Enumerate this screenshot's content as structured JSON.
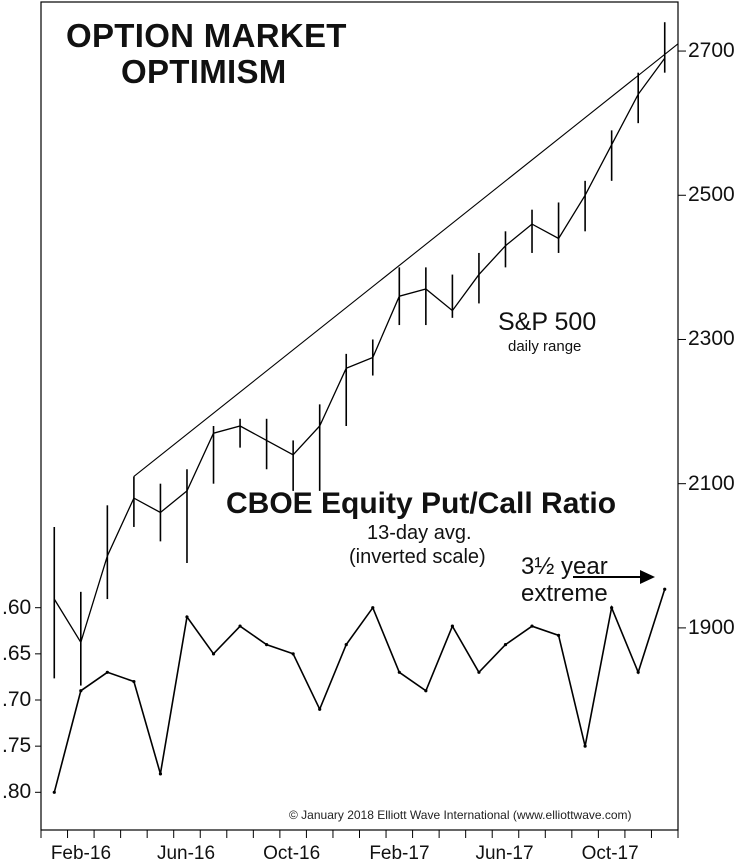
{
  "copyright": "© January 2018 Elliott Wave International (www.elliottwave.com)",
  "colors": {
    "line": "#000000",
    "background": "#ffffff"
  },
  "chart_data": {
    "type": "line",
    "title_lines": [
      "OPTION MARKET",
      "OPTIMISM"
    ],
    "x": {
      "tick_labels": [
        "Feb-16",
        "Jun-16",
        "Oct-16",
        "Feb-17",
        "Jun-17",
        "Oct-17"
      ],
      "range": [
        "2016-01",
        "2018-01"
      ]
    },
    "panels": [
      {
        "name": "S&P 500",
        "subtitle": "daily range",
        "axis": "right",
        "ylim": [
          1800,
          2750
        ],
        "yticks": [
          1900,
          2100,
          2300,
          2500,
          2700
        ],
        "x": [
          "2016-01",
          "2016-02",
          "2016-03",
          "2016-04",
          "2016-05",
          "2016-06",
          "2016-07",
          "2016-08",
          "2016-09",
          "2016-10",
          "2016-11",
          "2016-12",
          "2017-01",
          "2017-02",
          "2017-03",
          "2017-04",
          "2017-05",
          "2017-06",
          "2017-07",
          "2017-08",
          "2017-09",
          "2017-10",
          "2017-11",
          "2017-12"
        ],
        "values": [
          1940,
          1880,
          2000,
          2080,
          2060,
          2090,
          2170,
          2180,
          2160,
          2140,
          2180,
          2260,
          2275,
          2360,
          2370,
          2340,
          2390,
          2430,
          2460,
          2440,
          2500,
          2570,
          2640,
          2690
        ],
        "high": [
          2040,
          1950,
          2070,
          2110,
          2100,
          2120,
          2180,
          2190,
          2190,
          2160,
          2210,
          2280,
          2300,
          2400,
          2400,
          2390,
          2420,
          2450,
          2480,
          2490,
          2520,
          2590,
          2670,
          2740
        ],
        "low": [
          1830,
          1820,
          1940,
          2040,
          2020,
          1990,
          2100,
          2150,
          2120,
          2090,
          2090,
          2180,
          2250,
          2320,
          2320,
          2330,
          2350,
          2400,
          2420,
          2420,
          2450,
          2520,
          2600,
          2670
        ],
        "trendline": {
          "from": {
            "x": "2016-04",
            "y": 2110
          },
          "to": {
            "x": "2018-01",
            "y": 2710
          }
        }
      },
      {
        "name": "CBOE Equity Put/Call Ratio",
        "subtitle_lines": [
          "13-day avg.",
          "(inverted scale)"
        ],
        "axis": "left",
        "inverted": true,
        "ylim": [
          0.57,
          0.83
        ],
        "yticks": [
          0.6,
          0.65,
          0.7,
          0.75,
          0.8
        ],
        "ytick_labels": [
          ".60",
          ".65",
          ".70",
          ".75",
          ".80"
        ],
        "x": [
          "2016-01",
          "2016-02",
          "2016-03",
          "2016-04",
          "2016-05",
          "2016-06",
          "2016-07",
          "2016-08",
          "2016-09",
          "2016-10",
          "2016-11",
          "2016-12",
          "2017-01",
          "2017-02",
          "2017-03",
          "2017-04",
          "2017-05",
          "2017-06",
          "2017-07",
          "2017-08",
          "2017-09",
          "2017-10",
          "2017-11",
          "2017-12"
        ],
        "values": [
          0.8,
          0.69,
          0.67,
          0.68,
          0.78,
          0.61,
          0.65,
          0.62,
          0.64,
          0.65,
          0.71,
          0.64,
          0.6,
          0.67,
          0.69,
          0.62,
          0.67,
          0.64,
          0.62,
          0.63,
          0.75,
          0.6,
          0.67,
          0.58
        ]
      }
    ],
    "annotations": [
      {
        "lines": [
          "3½ year",
          "extreme"
        ],
        "arrow": true
      }
    ]
  }
}
